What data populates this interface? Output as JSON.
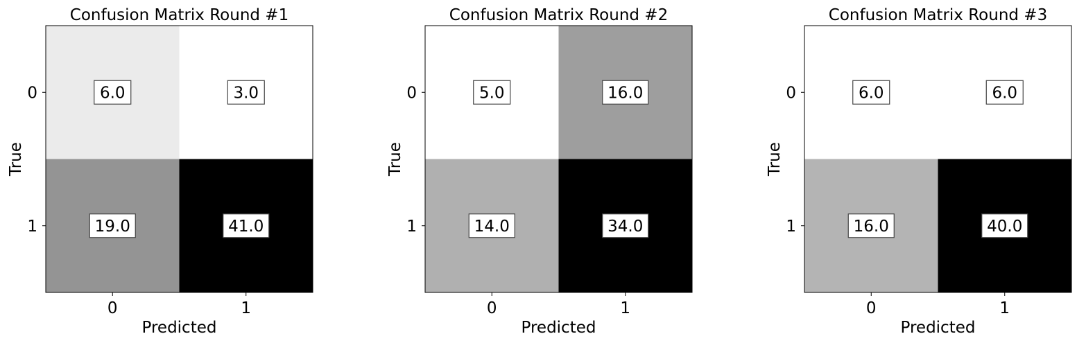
{
  "chart_data": [
    {
      "type": "heatmap",
      "title": "Confusion Matrix Round #1",
      "xlabel": "Predicted",
      "ylabel": "True",
      "x_categories": [
        "0",
        "1"
      ],
      "y_categories": [
        "0",
        "1"
      ],
      "values": [
        [
          6.0,
          3.0
        ],
        [
          19.0,
          41.0
        ]
      ],
      "cell_labels": [
        [
          "6.0",
          "3.0"
        ],
        [
          "19.0",
          "41.0"
        ]
      ],
      "colormap": "Greys",
      "grid": false
    },
    {
      "type": "heatmap",
      "title": "Confusion Matrix Round #2",
      "xlabel": "Predicted",
      "ylabel": "True",
      "x_categories": [
        "0",
        "1"
      ],
      "y_categories": [
        "0",
        "1"
      ],
      "values": [
        [
          5.0,
          16.0
        ],
        [
          14.0,
          34.0
        ]
      ],
      "cell_labels": [
        [
          "5.0",
          "16.0"
        ],
        [
          "14.0",
          "34.0"
        ]
      ],
      "colormap": "Greys",
      "grid": false
    },
    {
      "type": "heatmap",
      "title": "Confusion Matrix Round #3",
      "xlabel": "Predicted",
      "ylabel": "True",
      "x_categories": [
        "0",
        "1"
      ],
      "y_categories": [
        "0",
        "1"
      ],
      "values": [
        [
          6.0,
          6.0
        ],
        [
          16.0,
          40.0
        ]
      ],
      "cell_labels": [
        [
          "6.0",
          "6.0"
        ],
        [
          "16.0",
          "40.0"
        ]
      ],
      "colormap": "Greys",
      "grid": false
    }
  ]
}
